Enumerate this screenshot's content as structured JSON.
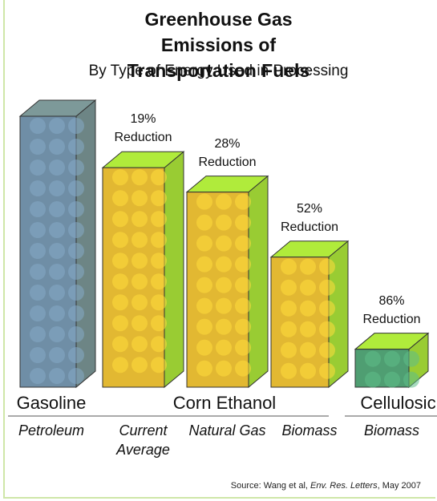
{
  "chart_data": {
    "type": "bar3d",
    "title": "Greenhouse Gas Emissions of Transportation Fuels",
    "subtitle": "By Type of Energy Used in Processing",
    "groups": [
      {
        "name": "Gasoline",
        "categories": [
          "Petroleum"
        ]
      },
      {
        "name": "Corn Ethanol",
        "categories": [
          "Current Average",
          "Natural Gas",
          "Biomass"
        ]
      },
      {
        "name": "Cellulosic",
        "categories": [
          "Biomass"
        ]
      }
    ],
    "values": [
      100,
      81,
      72,
      48,
      14
    ],
    "annotations": [
      null,
      {
        "percent": "19%",
        "text": "Reduction"
      },
      {
        "percent": "28%",
        "text": "Reduction"
      },
      {
        "percent": "52%",
        "text": "Reduction"
      },
      {
        "percent": "86%",
        "text": "Reduction"
      }
    ],
    "colors": [
      "#6f8ea6",
      "#e2b832",
      "#e2b832",
      "#e2b832",
      "#4f9e72"
    ],
    "side_colors": [
      "#6d8585",
      "#99cc33",
      "#99cc33",
      "#99cc33",
      "#99cc33"
    ],
    "source": {
      "prefix": "Source: Wang et al, ",
      "journal": "Env. Res. Letters",
      "suffix": ", May 2007"
    }
  }
}
